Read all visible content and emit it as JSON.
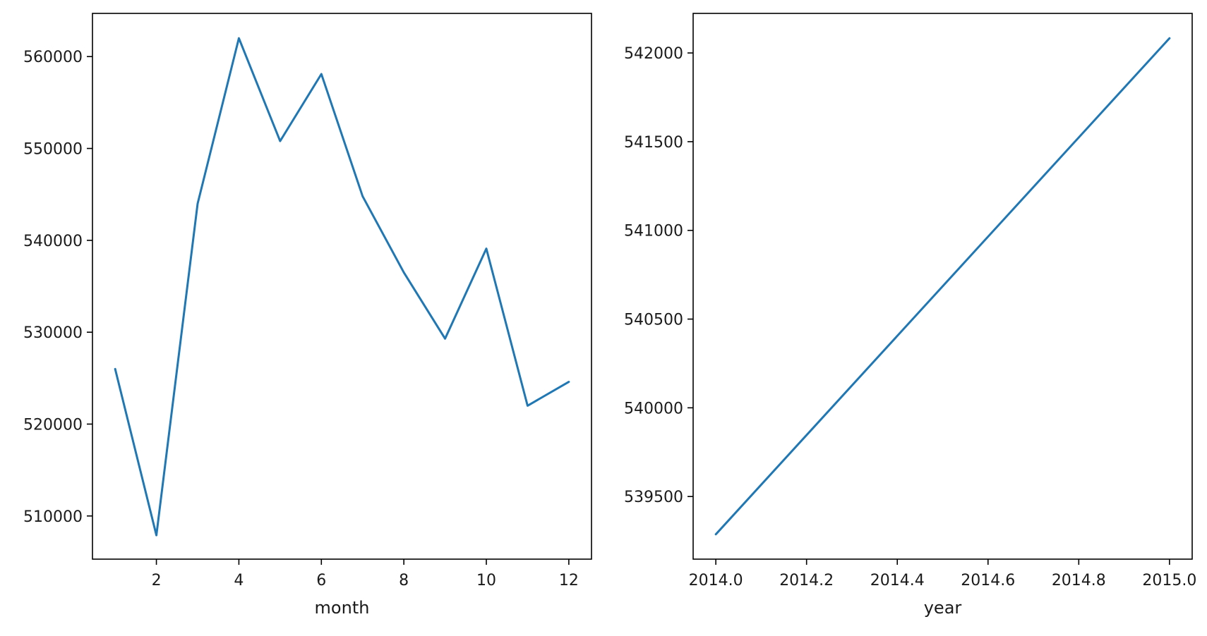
{
  "chart_data": [
    {
      "type": "line",
      "xlabel": "month",
      "ylabel": "",
      "title": "",
      "xlim": [
        0.45,
        12.55
      ],
      "ylim": [
        505300,
        564700
      ],
      "xticks": [
        2,
        4,
        6,
        8,
        10,
        12
      ],
      "xtick_labels": [
        "2",
        "4",
        "6",
        "8",
        "10",
        "12"
      ],
      "yticks": [
        510000,
        520000,
        530000,
        540000,
        550000,
        560000
      ],
      "ytick_labels": [
        "510000",
        "520000",
        "530000",
        "540000",
        "550000",
        "560000"
      ],
      "grid": false,
      "legend": "none",
      "color": "#1f77b4",
      "x": [
        1,
        2,
        3,
        4,
        5,
        6,
        7,
        8,
        9,
        10,
        11,
        12
      ],
      "y": [
        526000,
        507900,
        544000,
        562000,
        550800,
        558100,
        544800,
        536500,
        529300,
        539100,
        522000,
        524600
      ]
    },
    {
      "type": "line",
      "xlabel": "year",
      "ylabel": "",
      "title": "",
      "xlim": [
        2013.95,
        2015.05
      ],
      "ylim": [
        539147,
        542223
      ],
      "xticks": [
        2014.0,
        2014.2,
        2014.4,
        2014.6,
        2014.8,
        2015.0
      ],
      "xtick_labels": [
        "2014.0",
        "2014.2",
        "2014.4",
        "2014.6",
        "2014.8",
        "2015.0"
      ],
      "yticks": [
        539500,
        540000,
        540500,
        541000,
        541500,
        542000
      ],
      "ytick_labels": [
        "539500",
        "540000",
        "540500",
        "541000",
        "541500",
        "542000"
      ],
      "grid": false,
      "legend": "none",
      "color": "#1f77b4",
      "x": [
        2014,
        2015
      ],
      "y": [
        539287,
        542083
      ]
    }
  ]
}
